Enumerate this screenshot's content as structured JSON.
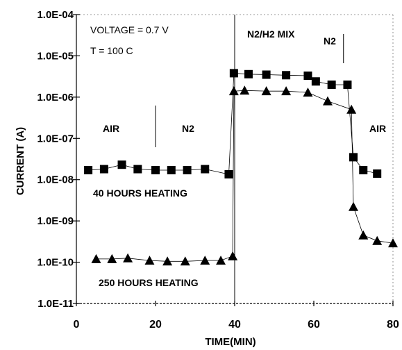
{
  "chart_data": {
    "type": "scatter",
    "xlabel": "TIME(MIN)",
    "ylabel": "CURRENT (A)",
    "xlim": [
      0,
      80
    ],
    "ylim": [
      1e-11,
      0.0001
    ],
    "yscale": "log",
    "x_ticks": [
      "0",
      "20",
      "40",
      "60",
      "80"
    ],
    "y_ticks": [
      "1.0E-11",
      "1.0E-10",
      "1.0E-09",
      "1.0E-08",
      "1.0E-07",
      "1.0E-06",
      "1.0E-05",
      "1.0E-04"
    ],
    "grid": false,
    "series": [
      {
        "marker": "square",
        "points": [
          [
            3,
            1.7e-08
          ],
          [
            7,
            1.8e-08
          ],
          [
            11.5,
            2.3e-08
          ],
          [
            15.5,
            1.8e-08
          ],
          [
            20,
            1.7e-08
          ],
          [
            24,
            1.7e-08
          ],
          [
            28,
            1.7e-08
          ],
          [
            32.5,
            1.8e-08
          ],
          [
            38.5,
            1.35e-08
          ],
          [
            39.8,
            3.8e-06
          ],
          [
            43.5,
            3.6e-06
          ],
          [
            48,
            3.5e-06
          ],
          [
            53,
            3.4e-06
          ],
          [
            58.5,
            3.3e-06
          ],
          [
            60.5,
            2.4e-06
          ],
          [
            64.5,
            2e-06
          ],
          [
            68.5,
            2e-06
          ],
          [
            70,
            3.5e-08
          ],
          [
            72.5,
            1.7e-08
          ],
          [
            76,
            1.4e-08
          ]
        ]
      },
      {
        "marker": "triangle",
        "points": [
          [
            5,
            1.2e-10
          ],
          [
            9,
            1.2e-10
          ],
          [
            13,
            1.25e-10
          ],
          [
            18.5,
            1.1e-10
          ],
          [
            23,
            1.05e-10
          ],
          [
            27.5,
            1.05e-10
          ],
          [
            32.5,
            1.1e-10
          ],
          [
            36.5,
            1.1e-10
          ],
          [
            39.5,
            1.4e-10
          ],
          [
            39.8,
            1.4e-06
          ],
          [
            42.5,
            1.45e-06
          ],
          [
            48,
            1.4e-06
          ],
          [
            53,
            1.4e-06
          ],
          [
            58.5,
            1.3e-06
          ],
          [
            63.5,
            8e-07
          ],
          [
            69.5,
            5e-07
          ],
          [
            70,
            2.2e-09
          ],
          [
            72.5,
            4.5e-10
          ],
          [
            76,
            3.3e-10
          ],
          [
            80,
            2.9e-10
          ]
        ]
      }
    ],
    "annotations": {
      "voltage": "VOLTAGE = 0.7 V",
      "temp": "T = 100 C",
      "air_left": "AIR",
      "n2_left": "N2",
      "mix": "N2/H2 MIX",
      "n2_right": "N2",
      "air_right": "AIR",
      "heat40": "40 HOURS HEATING",
      "heat250": "250 HOURS HEATING"
    }
  }
}
